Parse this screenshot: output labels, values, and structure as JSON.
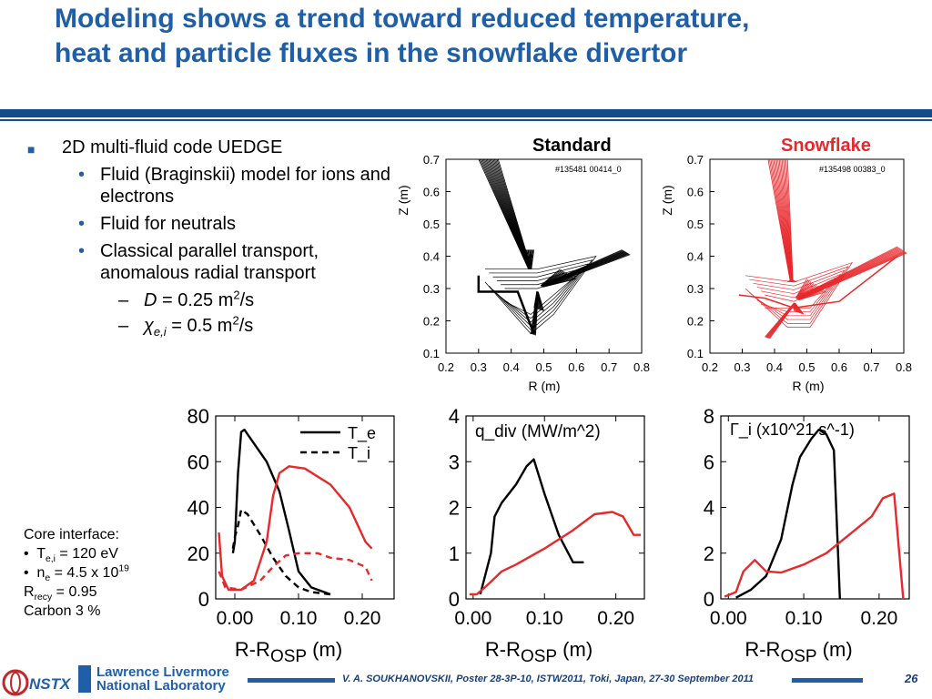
{
  "title": {
    "line1": "Modeling shows a trend toward reduced temperature,",
    "line2": "heat and particle fluxes in the snowflake divertor"
  },
  "bullets": {
    "l1": "2D multi-fluid code UEDGE",
    "l2a": "Fluid (Braginskii) model for ions and electrons",
    "l2b": "Fluid for neutrals",
    "l2c": "Classical parallel transport, anomalous radial transport",
    "l3a_sym": "D",
    "l3a_val": " = 0.25 m",
    "l3a_sup": "2",
    "l3a_unit": "/s",
    "l3b_sym": "χ",
    "l3b_sub": "e,i",
    "l3b_val": " = 0.5 m",
    "l3b_sup": "2",
    "l3b_unit": "/s"
  },
  "core": {
    "header": "Core interface:",
    "te_label": "T",
    "te_sub": "e,i",
    "te_val": " = 120 eV",
    "ne_label": "n",
    "ne_sub": "e",
    "ne_val": " = 4.5 x 10",
    "ne_sup": "19",
    "rrecy_label": "R",
    "rrecy_sub": "recy",
    "rrecy_val": " = 0.95",
    "carbon": "Carbon 3 %"
  },
  "footer": {
    "citation": "V. A. SOUKHANOVSKII, Poster 28-3P-10, ISTW2011, Toki, Japan, 27-30 September 2011",
    "page": "26",
    "logo1": "NSTX",
    "logo2a": "Lawrence Livermore",
    "logo2b": "National Laboratory"
  },
  "colors": {
    "title": "#1f5fa8",
    "standard": "#000000",
    "snowflake": "#e8282b"
  },
  "chart_data": [
    {
      "type": "line",
      "id": "grid-standard",
      "title": "Standard",
      "annotation": "#135481  00414_0",
      "xlabel": "R (m)",
      "ylabel": "Z (m)",
      "xlim": [
        0.2,
        0.8
      ],
      "ylim": [
        0.1,
        0.7
      ],
      "xticks": [
        "0.2",
        "0.3",
        "0.4",
        "0.5",
        "0.6",
        "0.7",
        "0.8"
      ],
      "yticks": [
        "0.1",
        "0.2",
        "0.3",
        "0.4",
        "0.5",
        "0.6",
        "0.7"
      ]
    },
    {
      "type": "line",
      "id": "grid-snowflake",
      "title": "Snowflake",
      "annotation": "#135498  00383_0",
      "xlabel": "R (m)",
      "ylabel": "Z (m)",
      "xlim": [
        0.2,
        0.8
      ],
      "ylim": [
        0.1,
        0.7
      ],
      "xticks": [
        "0.2",
        "0.3",
        "0.4",
        "0.5",
        "0.6",
        "0.7",
        "0.8"
      ],
      "yticks": [
        "0.1",
        "0.2",
        "0.3",
        "0.4",
        "0.5",
        "0.6",
        "0.7"
      ]
    },
    {
      "type": "line",
      "id": "temperature",
      "xlabel": "R-R",
      "xlabel_sub": "OSP",
      "xlabel_unit": " (m)",
      "xlim": [
        -0.03,
        0.25
      ],
      "ylim": [
        0,
        80
      ],
      "xticks": [
        {
          "v": 0.0,
          "t": "0.00"
        },
        {
          "v": 0.1,
          "t": "0.10"
        },
        {
          "v": 0.2,
          "t": "0.20"
        }
      ],
      "yticks": [
        {
          "v": 0,
          "t": "0"
        },
        {
          "v": 20,
          "t": "20"
        },
        {
          "v": 40,
          "t": "40"
        },
        {
          "v": 60,
          "t": "60"
        },
        {
          "v": 80,
          "t": "80"
        }
      ],
      "legend": [
        "T_e",
        "T_i"
      ],
      "series": [
        {
          "name": "T_e",
          "color": "#000000",
          "dash": false,
          "points": [
            [
              -0.003,
              20
            ],
            [
              0.0,
              25
            ],
            [
              0.005,
              55
            ],
            [
              0.01,
              73
            ],
            [
              0.015,
              74
            ],
            [
              0.03,
              68
            ],
            [
              0.05,
              60
            ],
            [
              0.07,
              47
            ],
            [
              0.085,
              30
            ],
            [
              0.1,
              12
            ],
            [
              0.12,
              5
            ],
            [
              0.15,
              2
            ]
          ]
        },
        {
          "name": "T_i",
          "color": "#000000",
          "dash": true,
          "points": [
            [
              -0.003,
              22
            ],
            [
              0.0,
              27
            ],
            [
              0.005,
              32
            ],
            [
              0.01,
              39
            ],
            [
              0.02,
              37
            ],
            [
              0.04,
              28
            ],
            [
              0.06,
              18
            ],
            [
              0.08,
              10
            ],
            [
              0.1,
              5
            ],
            [
              0.12,
              3
            ],
            [
              0.15,
              2
            ]
          ]
        },
        {
          "name": "snowflake T_e",
          "color": "#e8282b",
          "dash": false,
          "points": [
            [
              -0.025,
              29
            ],
            [
              -0.02,
              10
            ],
            [
              -0.01,
              4
            ],
            [
              0.01,
              4
            ],
            [
              0.03,
              8
            ],
            [
              0.05,
              25
            ],
            [
              0.06,
              45
            ],
            [
              0.07,
              55
            ],
            [
              0.085,
              58
            ],
            [
              0.11,
              57
            ],
            [
              0.15,
              50
            ],
            [
              0.18,
              40
            ],
            [
              0.205,
              25
            ],
            [
              0.215,
              22
            ]
          ]
        },
        {
          "name": "snowflake T_i",
          "color": "#e8282b",
          "dash": true,
          "points": [
            [
              -0.025,
              12
            ],
            [
              -0.015,
              5
            ],
            [
              0.01,
              4
            ],
            [
              0.04,
              8
            ],
            [
              0.06,
              14
            ],
            [
              0.08,
              19
            ],
            [
              0.1,
              20
            ],
            [
              0.13,
              20
            ],
            [
              0.15,
              18
            ],
            [
              0.18,
              17
            ],
            [
              0.205,
              14
            ],
            [
              0.215,
              8
            ]
          ]
        }
      ]
    },
    {
      "type": "line",
      "id": "qdiv",
      "title": "q_div (MW/m^2)",
      "xlabel": "R-R",
      "xlabel_sub": "OSP",
      "xlabel_unit": " (m)",
      "xlim": [
        -0.01,
        0.24
      ],
      "ylim": [
        0,
        4
      ],
      "xticks": [
        {
          "v": 0.0,
          "t": "0.00"
        },
        {
          "v": 0.1,
          "t": "0.10"
        },
        {
          "v": 0.2,
          "t": "0.20"
        }
      ],
      "yticks": [
        {
          "v": 0,
          "t": "0"
        },
        {
          "v": 1,
          "t": "1"
        },
        {
          "v": 2,
          "t": "2"
        },
        {
          "v": 3,
          "t": "3"
        },
        {
          "v": 4,
          "t": "4"
        }
      ],
      "series": [
        {
          "name": "standard",
          "color": "#000000",
          "dash": false,
          "points": [
            [
              0.01,
              0.1
            ],
            [
              0.025,
              1.0
            ],
            [
              0.03,
              1.8
            ],
            [
              0.04,
              2.1
            ],
            [
              0.06,
              2.5
            ],
            [
              0.075,
              2.9
            ],
            [
              0.085,
              3.05
            ],
            [
              0.1,
              2.3
            ],
            [
              0.12,
              1.4
            ],
            [
              0.14,
              0.8
            ],
            [
              0.155,
              0.8
            ]
          ]
        },
        {
          "name": "snowflake",
          "color": "#e8282b",
          "dash": false,
          "points": [
            [
              -0.005,
              0.1
            ],
            [
              0.005,
              0.1
            ],
            [
              0.02,
              0.3
            ],
            [
              0.04,
              0.6
            ],
            [
              0.06,
              0.75
            ],
            [
              0.1,
              1.1
            ],
            [
              0.14,
              1.5
            ],
            [
              0.17,
              1.85
            ],
            [
              0.195,
              1.9
            ],
            [
              0.21,
              1.8
            ],
            [
              0.225,
              1.4
            ],
            [
              0.235,
              1.4
            ]
          ]
        }
      ]
    },
    {
      "type": "line",
      "id": "gamma",
      "title": "Γ_i  (x10^21 s^-1)",
      "xlabel": "R-R",
      "xlabel_sub": "OSP",
      "xlabel_unit": " (m)",
      "xlim": [
        -0.01,
        0.24
      ],
      "ylim": [
        0,
        8
      ],
      "xticks": [
        {
          "v": 0.0,
          "t": "0.00"
        },
        {
          "v": 0.1,
          "t": "0.10"
        },
        {
          "v": 0.2,
          "t": "0.20"
        }
      ],
      "yticks": [
        {
          "v": 0,
          "t": "0"
        },
        {
          "v": 2,
          "t": "2"
        },
        {
          "v": 4,
          "t": "4"
        },
        {
          "v": 6,
          "t": "6"
        },
        {
          "v": 8,
          "t": "8"
        }
      ],
      "series": [
        {
          "name": "standard",
          "color": "#000000",
          "dash": false,
          "points": [
            [
              0.01,
              0.05
            ],
            [
              0.03,
              0.4
            ],
            [
              0.05,
              1.0
            ],
            [
              0.07,
              2.6
            ],
            [
              0.085,
              5.0
            ],
            [
              0.095,
              6.2
            ],
            [
              0.11,
              7.0
            ],
            [
              0.12,
              7.4
            ],
            [
              0.13,
              7.2
            ],
            [
              0.14,
              6.5
            ],
            [
              0.148,
              0.0
            ]
          ]
        },
        {
          "name": "snowflake",
          "color": "#e8282b",
          "dash": false,
          "points": [
            [
              -0.005,
              0.1
            ],
            [
              0.01,
              0.3
            ],
            [
              0.02,
              1.2
            ],
            [
              0.035,
              1.7
            ],
            [
              0.05,
              1.2
            ],
            [
              0.07,
              1.15
            ],
            [
              0.1,
              1.5
            ],
            [
              0.13,
              2.0
            ],
            [
              0.16,
              2.8
            ],
            [
              0.19,
              3.6
            ],
            [
              0.205,
              4.4
            ],
            [
              0.22,
              4.6
            ],
            [
              0.232,
              0.0
            ]
          ]
        }
      ]
    }
  ]
}
